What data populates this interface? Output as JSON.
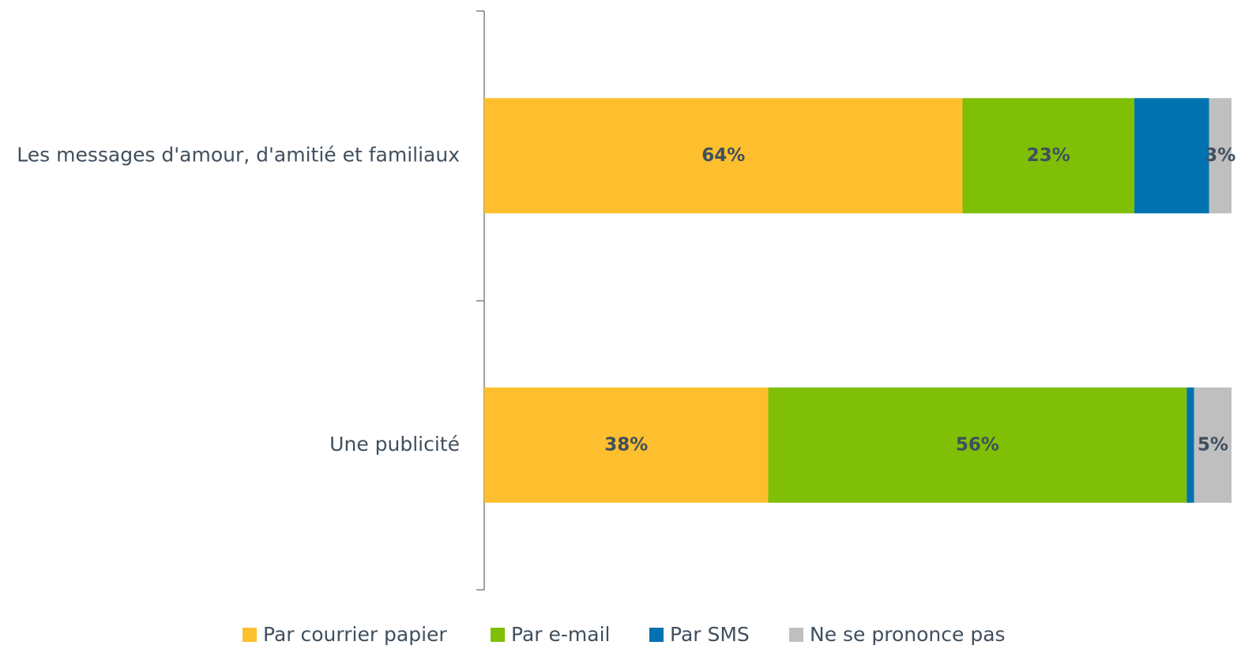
{
  "chart_data": {
    "type": "stacked-barh",
    "categories": [
      "Les messages d'amour, d'amitié et familiaux",
      "Une publicité"
    ],
    "series": [
      {
        "name": "Par courrier papier",
        "color": "#fdbf2d",
        "values": [
          64,
          38
        ],
        "value_labels": [
          "64%",
          "38%"
        ]
      },
      {
        "name": "Par e-mail",
        "color": "#7fbf05",
        "values": [
          23,
          56
        ],
        "value_labels": [
          "23%",
          "56%"
        ]
      },
      {
        "name": "Par SMS",
        "color": "#0072b0",
        "values": [
          10,
          1
        ],
        "value_labels": [
          null,
          null
        ]
      },
      {
        "name": "Ne se prononce pas",
        "color": "#bfbfbf",
        "values": [
          3,
          5
        ],
        "value_labels": [
          "3%",
          "5%"
        ]
      }
    ],
    "xlim": [
      0,
      100
    ],
    "legend": "bottom"
  }
}
